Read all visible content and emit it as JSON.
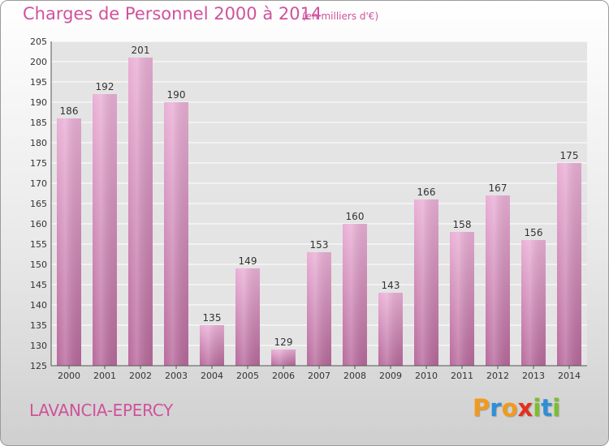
{
  "header": {
    "title": "Charges de Personnel 2000 à 2014",
    "unit": "(en milliers d'€)"
  },
  "footer": {
    "commune": "LAVANCIA-EPERCY",
    "logo": [
      "P",
      "r",
      "o",
      "x",
      "i",
      "t",
      "i"
    ]
  },
  "colors": {
    "accent": "#d0529c",
    "bar_top": "#eab0d6",
    "bar_bottom": "#b86a9c",
    "logo": [
      "#f29a1d",
      "#2f8fd6",
      "#f29a1d",
      "#e2311d",
      "#7bbf2b",
      "#2f8fd6",
      "#7bbf2b"
    ]
  },
  "chart_data": {
    "type": "bar",
    "categories": [
      "2000",
      "2001",
      "2002",
      "2003",
      "2004",
      "2005",
      "2006",
      "2007",
      "2008",
      "2009",
      "2010",
      "2011",
      "2012",
      "2013",
      "2014"
    ],
    "values": [
      186,
      192,
      201,
      190,
      135,
      149,
      129,
      153,
      160,
      143,
      166,
      158,
      167,
      156,
      175
    ],
    "data_labels": [
      "186",
      "192",
      "201",
      "190",
      "135",
      "149",
      "129",
      "153",
      "160",
      "143",
      "166",
      "158",
      "167",
      "156",
      "175"
    ],
    "title": "Charges de Personnel 2000 à 2014",
    "xlabel": "",
    "ylabel": "",
    "ylim": [
      125,
      205
    ],
    "yticks": [
      125,
      130,
      135,
      140,
      145,
      150,
      155,
      160,
      165,
      170,
      175,
      180,
      185,
      190,
      195,
      200,
      205
    ],
    "grid": true,
    "legend": "none"
  }
}
